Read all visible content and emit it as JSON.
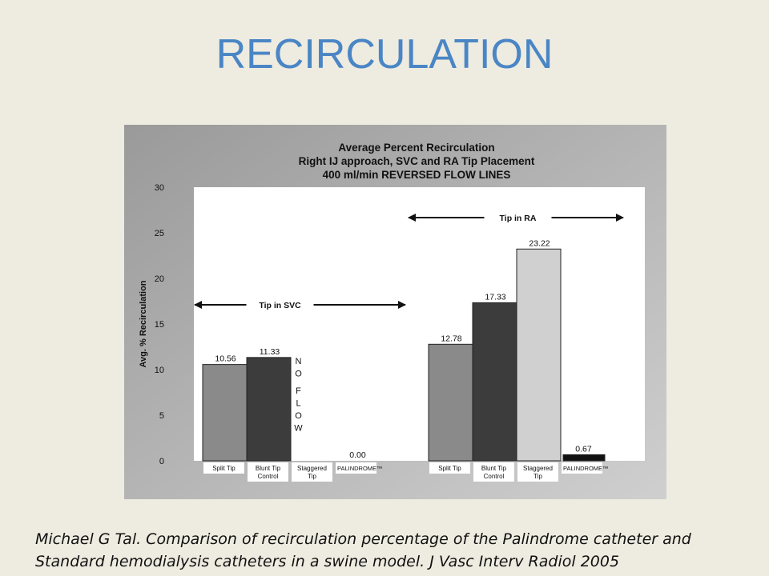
{
  "slide": {
    "title": "RECIRCULATION",
    "citation_lines": [
      "Michael G Tal. Comparison of recirculation percentage of the Palindrome catheter and",
      "Standard hemodialysis catheters in a swine model. J Vasc Interv Radiol 2005"
    ]
  },
  "chart_data": {
    "type": "bar",
    "title_lines": [
      "Average Percent Recirculation",
      "Right IJ approach, SVC and RA Tip Placement",
      "400 ml/min  REVERSED FLOW LINES"
    ],
    "ylabel": "Avg. % Recirculation",
    "ylim": [
      0,
      30
    ],
    "yticks": [
      "0",
      "5",
      "10",
      "15",
      "20",
      "25",
      "30"
    ],
    "groups": [
      {
        "label": "Tip in SVC",
        "bars": [
          {
            "category": "Split Tip",
            "value": 10.56,
            "value_label": "10.56",
            "color": "#8a8a8a"
          },
          {
            "category": "Blunt Tip Control",
            "value": 11.33,
            "value_label": "11.33",
            "color": "#3c3c3c"
          },
          {
            "category": "Staggered Tip",
            "value": null,
            "value_label": "",
            "color": "#d0d0d0"
          },
          {
            "category": "PALINDROME™",
            "value": 0.0,
            "value_label": "0.00",
            "color": "#111111"
          }
        ]
      },
      {
        "label": "Tip in RA",
        "bars": [
          {
            "category": "Split Tip",
            "value": 12.78,
            "value_label": "12.78",
            "color": "#8a8a8a"
          },
          {
            "category": "Blunt Tip Control",
            "value": 17.33,
            "value_label": "17.33",
            "color": "#3c3c3c"
          },
          {
            "category": "Staggered Tip",
            "value": 23.22,
            "value_label": "23.22",
            "color": "#d0d0d0"
          },
          {
            "category": "PALINDROME™",
            "value": 0.67,
            "value_label": "0.67",
            "color": "#111111"
          }
        ]
      }
    ],
    "annotations": [
      {
        "text": "NO FLOW",
        "group": 0,
        "category": "Staggered Tip"
      }
    ],
    "grid": false
  }
}
